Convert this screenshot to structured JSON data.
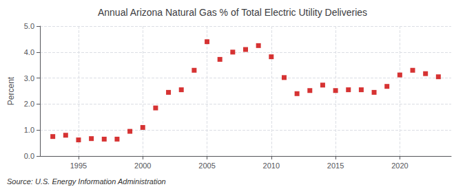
{
  "chart_data": {
    "type": "scatter",
    "title": "Annual Arizona Natural Gas % of Total Electric Utility Deliveries",
    "ylabel": "Percent",
    "annotations": [
      "Source: U.S. Energy Information Administration"
    ],
    "x": [
      1993,
      1994,
      1995,
      1996,
      1997,
      1998,
      1999,
      2000,
      2001,
      2002,
      2003,
      2004,
      2005,
      2006,
      2007,
      2008,
      2009,
      2010,
      2011,
      2012,
      2013,
      2014,
      2015,
      2016,
      2017,
      2018,
      2019,
      2020,
      2021,
      2022,
      2023
    ],
    "values": [
      0.75,
      0.8,
      0.62,
      0.67,
      0.65,
      0.65,
      0.95,
      1.1,
      1.85,
      2.45,
      2.55,
      3.3,
      4.4,
      3.72,
      4.0,
      4.1,
      4.25,
      3.82,
      3.02,
      2.4,
      2.52,
      2.73,
      2.52,
      2.55,
      2.55,
      2.45,
      2.68,
      3.12,
      3.3,
      3.17,
      3.05
    ],
    "color": "#CC0000",
    "marker": "square",
    "xlim": [
      1992,
      2024
    ],
    "xticks": [
      1995,
      2000,
      2005,
      2010,
      2015,
      2020
    ],
    "ylim": [
      0.0,
      5.0
    ],
    "yticks": [
      {
        "value": 0,
        "label": "0.0"
      },
      {
        "value": 1,
        "label": "1.0"
      },
      {
        "value": 2,
        "label": "2.0"
      },
      {
        "value": 3,
        "label": "3.0"
      },
      {
        "value": 4,
        "label": "4.0"
      },
      {
        "value": 5,
        "label": "5.0"
      }
    ],
    "grid": true
  }
}
